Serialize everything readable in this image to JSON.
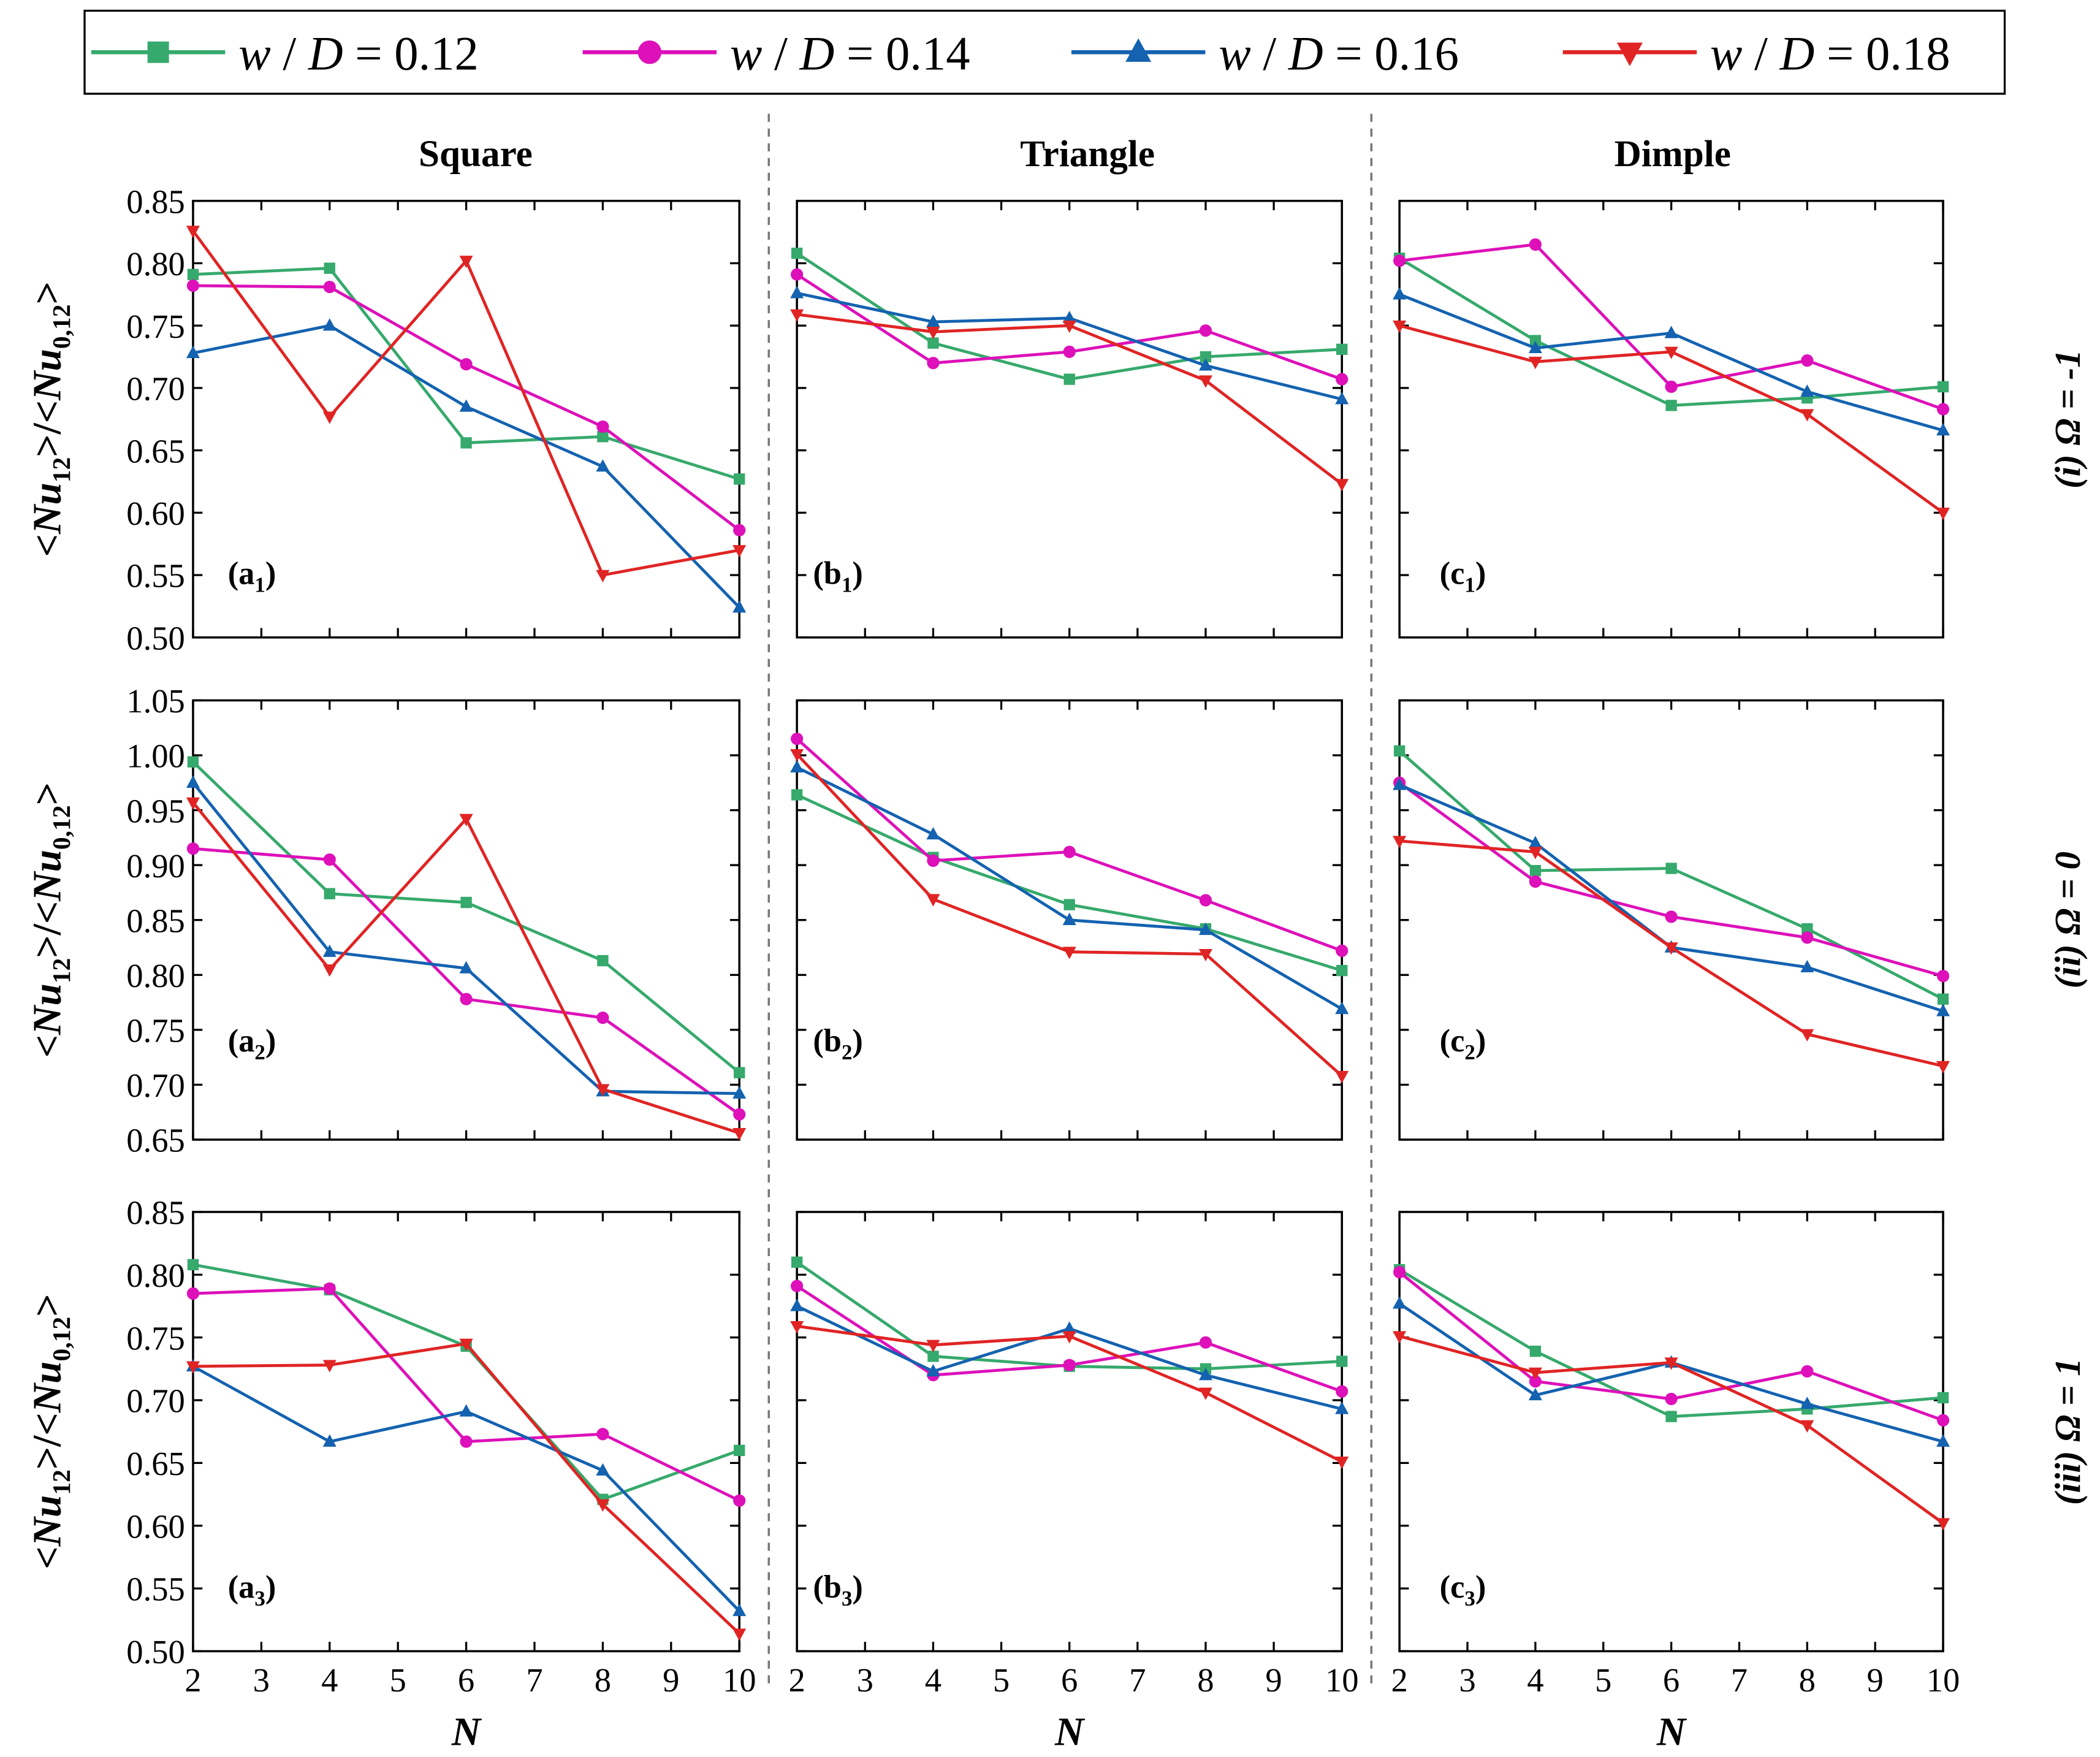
{
  "chart_data": {
    "type": "line",
    "x": [
      2,
      4,
      6,
      8,
      10
    ],
    "xlabel": "N",
    "xticks": [
      2,
      3,
      4,
      5,
      6,
      7,
      8,
      9,
      10
    ],
    "xlim": [
      2,
      10
    ],
    "ylabel_parts": [
      "<",
      "Nu",
      "12",
      ">/<",
      "Nu",
      "0,12",
      ">"
    ],
    "columns": [
      "Square",
      "Triangle",
      "Dimple"
    ],
    "rows": [
      {
        "label": "(i) Ω = -1",
        "ylim": [
          0.5,
          0.85
        ],
        "yticks": [
          "0.50",
          "0.55",
          "0.60",
          "0.65",
          "0.70",
          "0.75",
          "0.80",
          "0.85"
        ]
      },
      {
        "label": "(ii) Ω = 0",
        "ylim": [
          0.65,
          1.05
        ],
        "yticks": [
          "0.65",
          "0.70",
          "0.75",
          "0.80",
          "0.85",
          "0.90",
          "0.95",
          "1.00",
          "1.05"
        ]
      },
      {
        "label": "(iii) Ω = 1",
        "ylim": [
          0.5,
          0.85
        ],
        "yticks": [
          "0.50",
          "0.55",
          "0.60",
          "0.65",
          "0.70",
          "0.75",
          "0.80",
          "0.85"
        ]
      }
    ],
    "legend": [
      {
        "name": "w / D = 0.12",
        "color": "#36a96c",
        "marker": "square"
      },
      {
        "name": "w / D = 0.14",
        "color": "#dd10b9",
        "marker": "circle"
      },
      {
        "name": "w / D = 0.16",
        "color": "#1462b0",
        "marker": "triangle-up"
      },
      {
        "name": "w / D = 0.18",
        "color": "#e02424",
        "marker": "triangle-down"
      }
    ],
    "legend_position": "top",
    "grid": false,
    "panels": [
      {
        "letter": "a",
        "sub": "1",
        "row": 0,
        "col": 0,
        "series": [
          [
            0.791,
            0.796,
            0.656,
            0.661,
            0.627
          ],
          [
            0.782,
            0.781,
            0.719,
            0.669,
            0.586
          ],
          [
            0.728,
            0.75,
            0.685,
            0.637,
            0.524
          ],
          [
            0.826,
            0.677,
            0.802,
            0.55,
            0.57
          ]
        ]
      },
      {
        "letter": "b",
        "sub": "1",
        "row": 0,
        "col": 1,
        "series": [
          [
            0.808,
            0.736,
            0.707,
            0.725,
            0.731
          ],
          [
            0.791,
            0.72,
            0.729,
            0.746,
            0.707
          ],
          [
            0.776,
            0.753,
            0.756,
            0.718,
            0.691
          ],
          [
            0.759,
            0.745,
            0.75,
            0.706,
            0.623
          ]
        ]
      },
      {
        "letter": "c",
        "sub": "1",
        "row": 0,
        "col": 2,
        "series": [
          [
            0.804,
            0.738,
            0.686,
            0.692,
            0.701
          ],
          [
            0.802,
            0.815,
            0.701,
            0.722,
            0.683
          ],
          [
            0.775,
            0.732,
            0.744,
            0.697,
            0.666
          ],
          [
            0.75,
            0.721,
            0.729,
            0.679,
            0.6
          ]
        ]
      },
      {
        "letter": "a",
        "sub": "2",
        "row": 1,
        "col": 0,
        "series": [
          [
            0.994,
            0.874,
            0.866,
            0.813,
            0.711
          ],
          [
            0.915,
            0.905,
            0.778,
            0.761,
            0.673
          ],
          [
            0.975,
            0.821,
            0.806,
            0.694,
            0.692
          ],
          [
            0.957,
            0.805,
            0.942,
            0.696,
            0.656
          ]
        ]
      },
      {
        "letter": "b",
        "sub": "2",
        "row": 1,
        "col": 1,
        "series": [
          [
            0.964,
            0.907,
            0.864,
            0.842,
            0.804
          ],
          [
            1.015,
            0.904,
            0.912,
            0.868,
            0.822
          ],
          [
            0.989,
            0.928,
            0.85,
            0.841,
            0.769
          ],
          [
            1.001,
            0.869,
            0.821,
            0.819,
            0.708
          ]
        ]
      },
      {
        "letter": "c",
        "sub": "2",
        "row": 1,
        "col": 2,
        "series": [
          [
            1.004,
            0.895,
            0.897,
            0.842,
            0.778
          ],
          [
            0.975,
            0.885,
            0.853,
            0.834,
            0.799
          ],
          [
            0.973,
            0.92,
            0.825,
            0.807,
            0.767
          ],
          [
            0.922,
            0.912,
            0.825,
            0.746,
            0.717
          ]
        ]
      },
      {
        "letter": "a",
        "sub": "3",
        "row": 2,
        "col": 0,
        "series": [
          [
            0.808,
            0.788,
            0.743,
            0.621,
            0.66
          ],
          [
            0.785,
            0.789,
            0.667,
            0.673,
            0.62
          ],
          [
            0.727,
            0.667,
            0.691,
            0.644,
            0.532
          ],
          [
            0.727,
            0.728,
            0.745,
            0.617,
            0.514
          ]
        ]
      },
      {
        "letter": "b",
        "sub": "3",
        "row": 2,
        "col": 1,
        "series": [
          [
            0.81,
            0.735,
            0.727,
            0.725,
            0.731
          ],
          [
            0.791,
            0.72,
            0.728,
            0.746,
            0.707
          ],
          [
            0.775,
            0.723,
            0.757,
            0.72,
            0.693
          ],
          [
            0.759,
            0.744,
            0.751,
            0.706,
            0.651
          ]
        ]
      },
      {
        "letter": "c",
        "sub": "3",
        "row": 2,
        "col": 2,
        "series": [
          [
            0.804,
            0.739,
            0.687,
            0.693,
            0.702
          ],
          [
            0.802,
            0.715,
            0.701,
            0.723,
            0.684
          ],
          [
            0.777,
            0.704,
            0.73,
            0.697,
            0.667
          ],
          [
            0.751,
            0.722,
            0.73,
            0.68,
            0.602
          ]
        ]
      }
    ]
  }
}
